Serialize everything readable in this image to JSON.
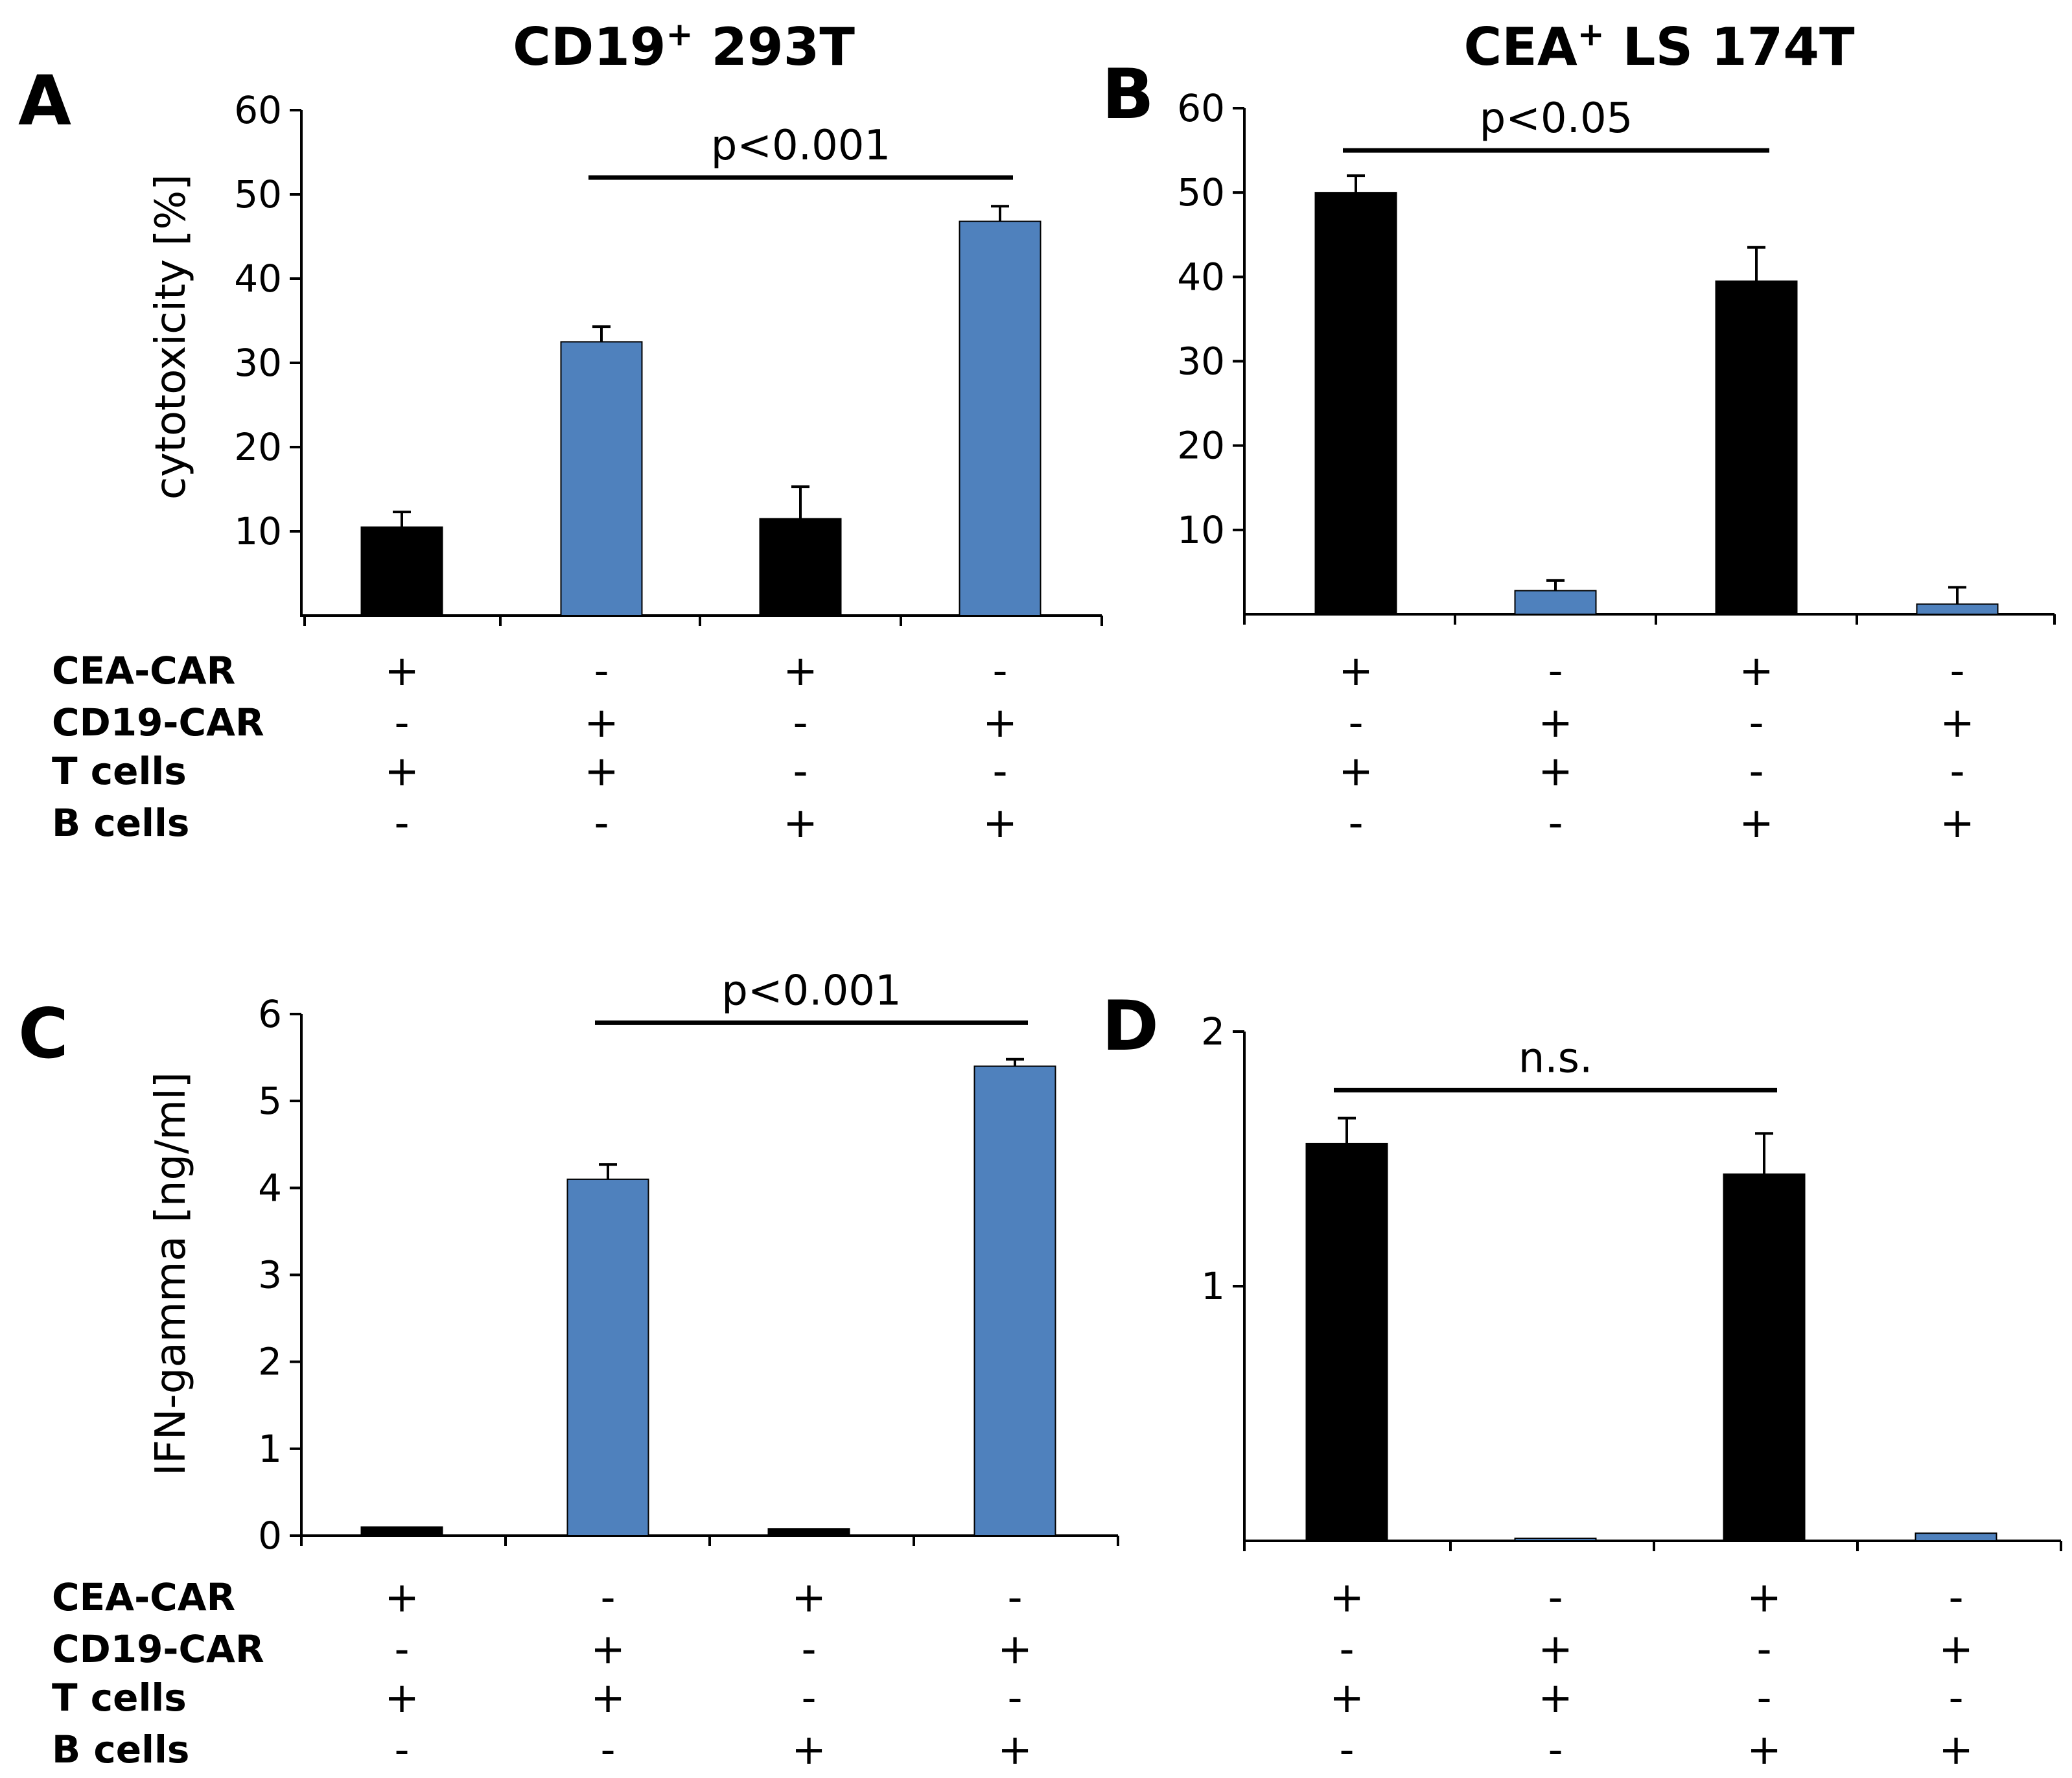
{
  "colors": {
    "black_bar": "#000000",
    "blue_bar": "#4f81bd",
    "axis": "#000000"
  },
  "chart_data": [
    {
      "id": "A",
      "type": "bar",
      "letter": "A",
      "title": "CD19",
      "title_sup": "+",
      "title_rest": " 293T",
      "ylabel": "cytotoxicity [%]",
      "ylim": [
        0,
        60
      ],
      "yticks": [
        "10",
        "20",
        "30",
        "40",
        "50",
        "60"
      ],
      "ytick_values": [
        10,
        20,
        30,
        40,
        50,
        60
      ],
      "categories": [
        "1",
        "2",
        "3",
        "4"
      ],
      "values": [
        10.5,
        32.5,
        11.5,
        46.8
      ],
      "errors": [
        1.8,
        1.8,
        3.8,
        1.8
      ],
      "bar_colors": [
        "black",
        "blue",
        "black",
        "blue"
      ],
      "significance": {
        "label": "p<0.001",
        "from": 1,
        "to": 3,
        "y": 52
      }
    },
    {
      "id": "B",
      "type": "bar",
      "letter": "B",
      "title": "CEA",
      "title_sup": "+",
      "title_rest": " LS 174T",
      "ylabel": "",
      "ylim": [
        0,
        60
      ],
      "yticks": [
        "10",
        "20",
        "30",
        "40",
        "50",
        "60"
      ],
      "ytick_values": [
        10,
        20,
        30,
        40,
        50,
        60
      ],
      "categories": [
        "1",
        "2",
        "3",
        "4"
      ],
      "values": [
        50.0,
        2.8,
        39.5,
        1.2
      ],
      "errors": [
        2.0,
        1.2,
        4.0,
        2.0
      ],
      "bar_colors": [
        "black",
        "blue",
        "black",
        "blue"
      ],
      "significance": {
        "label": "p<0.05",
        "from": 0,
        "to": 2,
        "y": 55
      }
    },
    {
      "id": "C",
      "type": "bar",
      "letter": "C",
      "title": "",
      "title_sup": "",
      "title_rest": "",
      "ylabel": "IFN-gamma [ng/ml]",
      "ylim": [
        0,
        6
      ],
      "yticks": [
        "0",
        "1",
        "2",
        "3",
        "4",
        "5",
        "6"
      ],
      "ytick_values": [
        0,
        1,
        2,
        3,
        4,
        5,
        6
      ],
      "categories": [
        "1",
        "2",
        "3",
        "4"
      ],
      "values": [
        0.1,
        4.1,
        0.08,
        5.4
      ],
      "errors": [
        0,
        0.17,
        0,
        0.08
      ],
      "bar_colors": [
        "black",
        "blue",
        "black",
        "blue"
      ],
      "significance": {
        "label": "p<0.001",
        "from": 1,
        "to": 3,
        "y": 5.9
      }
    },
    {
      "id": "D",
      "type": "bar",
      "letter": "D",
      "title": "",
      "title_sup": "",
      "title_rest": "",
      "ylabel": "",
      "ylim": [
        0,
        2
      ],
      "yticks": [
        "1",
        "2"
      ],
      "ytick_values": [
        1,
        2
      ],
      "categories": [
        "1",
        "2",
        "3",
        "4"
      ],
      "values": [
        1.56,
        0.01,
        1.44,
        0.03
      ],
      "errors": [
        0.1,
        0,
        0.16,
        0
      ],
      "bar_colors": [
        "black",
        "blue",
        "black",
        "blue"
      ],
      "significance": {
        "label": "n.s.",
        "from": 0,
        "to": 2,
        "y": 1.77
      }
    }
  ],
  "conditions": {
    "row_labels": [
      "CEA-CAR",
      "CD19-CAR",
      "T cells",
      "B cells"
    ],
    "signs": [
      [
        "+",
        "-",
        "+",
        "-"
      ],
      [
        "-",
        "+",
        "-",
        "+"
      ],
      [
        "+",
        "+",
        "-",
        "-"
      ],
      [
        "-",
        "-",
        "+",
        "+"
      ]
    ]
  }
}
